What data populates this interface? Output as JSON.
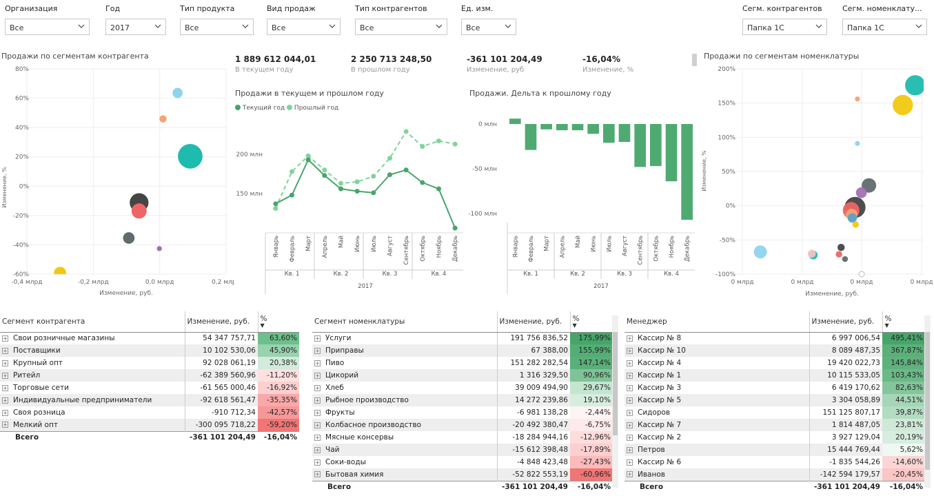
{
  "filters": [
    {
      "label": "Организация",
      "value": "Все"
    },
    {
      "label": "Год",
      "value": "2017"
    },
    {
      "label": "Тип продукта",
      "value": "Все"
    },
    {
      "label": "Вид продаж",
      "value": "Все"
    },
    {
      "label": "Тип контрагентов",
      "value": "Все"
    },
    {
      "label": "Ед. изм.",
      "value": "Все"
    },
    {
      "label": "Сегм. контрагентов",
      "value": "Папка 1С"
    },
    {
      "label": "Сегм. номенклату...",
      "value": "Папка 1С"
    }
  ],
  "kpis": [
    {
      "value": "1 889 612 044,01",
      "label": "В текущем году"
    },
    {
      "value": "2 250 713 248,50",
      "label": "В прошлом году"
    },
    {
      "value": "-361 101 204,49",
      "label": "Изменение, руб"
    },
    {
      "value": "-16,04%",
      "label": "Изменение, %"
    }
  ],
  "scatter_left": {
    "title": "Продажи по сегментам контрагента",
    "ylabel": "Изменение, %",
    "xlabel": "Изменение, руб.",
    "y_ticks": [
      "80%",
      "60%",
      "40%",
      "20%",
      "0%",
      "-20%",
      "-40%",
      "-60%"
    ],
    "x_ticks": [
      "-0,4 млрд",
      "-0,2 млрд",
      "0,0 млрд",
      "0,2 млрд"
    ]
  },
  "line_chart": {
    "title": "Продажи в текущем и прошлом году",
    "legend": [
      "Текущий год",
      "Прошлый год"
    ],
    "y_ticks": [
      "200 млн",
      "150 млн"
    ],
    "months": [
      "Январь",
      "Февраль",
      "Март",
      "Апрель",
      "Май",
      "Июнь",
      "Июль",
      "Август",
      "Сентябрь",
      "Октябрь",
      "Ноябрь",
      "Декабрь"
    ],
    "quarters": [
      "Кв. 1",
      "Кв. 2",
      "Кв. 3",
      "Кв. 4"
    ],
    "year": "2017"
  },
  "bar_chart": {
    "title": "Продажи. Дельта к прошлому году",
    "y_ticks": [
      "0 млн",
      "-50 млн",
      "-100 млн"
    ],
    "months": [
      "Январь",
      "Февраль",
      "Март",
      "Апрель",
      "Май",
      "Июнь",
      "Июль",
      "Август",
      "Сентябрь",
      "Октябрь",
      "Ноябрь",
      "Декабрь"
    ],
    "quarters": [
      "Кв. 1",
      "Кв. 2",
      "Кв. 3",
      "Кв. 4"
    ],
    "year": "2017"
  },
  "scatter_right": {
    "title": "Продажи по сегментам номенклатуры",
    "ylabel": "Изменение, %",
    "xlabel": "Изменение, руб.",
    "y_ticks": [
      "200%",
      "150%",
      "100%",
      "50%",
      "0%",
      "-50%",
      "-100%"
    ],
    "x_ticks": [
      "0 млрд",
      "0 млрд",
      "0 млрд",
      "0 млрд"
    ]
  },
  "chart_data": [
    {
      "type": "scatter",
      "title": "Продажи по сегментам контрагента",
      "xlabel": "Изменение, руб.",
      "ylabel": "Изменение, %",
      "xlim": [
        -0.4,
        0.2
      ],
      "ylim": [
        -60,
        80
      ],
      "points": [
        {
          "x": 0.054,
          "y": 63.6,
          "size": 14,
          "color": "#8fd3ee"
        },
        {
          "x": 0.01,
          "y": 45.9,
          "size": 10,
          "color": "#f5a375"
        },
        {
          "x": 0.092,
          "y": 20.38,
          "size": 34,
          "color": "#1fbbaf"
        },
        {
          "x": -0.062,
          "y": -11.2,
          "size": 26,
          "color": "#454545"
        },
        {
          "x": -0.062,
          "y": -16.92,
          "size": 21,
          "color": "#ef6565"
        },
        {
          "x": -0.093,
          "y": -35.35,
          "size": 16,
          "color": "#5f6b6d"
        },
        {
          "x": -0.001,
          "y": -42.57,
          "size": 7,
          "color": "#a36fb5"
        },
        {
          "x": -0.3,
          "y": -59.2,
          "size": 17,
          "color": "#f2c811"
        }
      ]
    },
    {
      "type": "line",
      "title": "Продажи в текущем и прошлом году",
      "x": [
        "Январь",
        "Февраль",
        "Март",
        "Апрель",
        "Май",
        "Июнь",
        "Июль",
        "Август",
        "Сентябрь",
        "Октябрь",
        "Ноябрь",
        "Декабрь"
      ],
      "ylim": [
        100,
        250
      ],
      "series": [
        {
          "name": "Текущий год",
          "values": [
            137,
            148,
            193,
            173,
            156,
            153,
            151,
            174,
            180,
            164,
            156,
            106
          ],
          "color": "#47a56a",
          "dash": false
        },
        {
          "name": "Прошлый год",
          "values": [
            131,
            178,
            198,
            180,
            163,
            165,
            172,
            195,
            229,
            210,
            217,
            213
          ],
          "color": "#7fd49b",
          "dash": true
        }
      ]
    },
    {
      "type": "bar",
      "title": "Продажи. Дельта к прошлому году",
      "categories": [
        "Январь",
        "Февраль",
        "Март",
        "Апрель",
        "Май",
        "Июнь",
        "Июль",
        "Август",
        "Сентябрь",
        "Октябрь",
        "Ноябрь",
        "Декабрь"
      ],
      "values": [
        6,
        -29,
        -6,
        -7,
        -7,
        -11,
        -21,
        -20,
        -48,
        -47,
        -64,
        -107
      ],
      "ylim": [
        -110,
        10
      ]
    },
    {
      "type": "scatter",
      "title": "Продажи по сегментам номенклатуры",
      "xlabel": "Изменение, руб.",
      "ylabel": "Изменение, %",
      "ylim": [
        -100,
        200
      ],
      "points": [
        {
          "x": 0.192,
          "y": 175.99,
          "size": 28,
          "color": "#1fbbaf"
        },
        {
          "x": 0.151,
          "y": 147.14,
          "size": 28,
          "color": "#f2c811"
        },
        {
          "x": 0.001,
          "y": 155.99,
          "size": 7,
          "color": "#f5a375"
        },
        {
          "x": 0.001,
          "y": 90.96,
          "size": 7,
          "color": "#8fd3ee"
        },
        {
          "x": 0.039,
          "y": 29.67,
          "size": 20,
          "color": "#5f6b6d"
        },
        {
          "x": 0.014,
          "y": 19.1,
          "size": 15,
          "color": "#a36fb5"
        },
        {
          "x": -0.007,
          "y": -2.44,
          "size": 29,
          "color": "#454545"
        },
        {
          "x": -0.02,
          "y": -6.75,
          "size": 23,
          "color": "#ef6565"
        },
        {
          "x": -0.018,
          "y": -12.96,
          "size": 16,
          "color": "#f5a375"
        },
        {
          "x": -0.016,
          "y": -17.89,
          "size": 13,
          "color": "#5aa0c8"
        },
        {
          "x": -0.005,
          "y": -27.43,
          "size": 9,
          "color": "#f2c811"
        },
        {
          "x": -0.053,
          "y": -60.96,
          "size": 10,
          "color": "#454545"
        },
        {
          "x": -0.32,
          "y": -67.5,
          "size": 18,
          "color": "#8fd3ee"
        },
        {
          "x": -0.15,
          "y": -70.0,
          "size": 11,
          "color": "#f0c4c4"
        },
        {
          "x": -0.145,
          "y": -72.0,
          "size": 12,
          "color": "#1fbbaf"
        },
        {
          "x": -0.06,
          "y": -71.0,
          "size": 9,
          "color": "#ef6565"
        },
        {
          "x": -0.04,
          "y": -78.0,
          "size": 8,
          "color": "#5f6b6d"
        }
      ]
    }
  ],
  "table_left": {
    "headers": [
      "Сегмент контрагента",
      "Изменение, руб.",
      "%"
    ],
    "rows": [
      {
        "name": "Свои розничные магазины",
        "value": "54 347 757,71",
        "pct": "63,60%",
        "bg": "#6cc08b"
      },
      {
        "name": "Поставщики",
        "value": "10 102 530,06",
        "pct": "45,90%",
        "bg": "#99d2ae"
      },
      {
        "name": "Крупный опт",
        "value": "92 028 061,19",
        "pct": "20,38%",
        "bg": "#d2ebdb"
      },
      {
        "name": "Ритейл",
        "value": "-62 389 560,96",
        "pct": "-11,20%",
        "bg": "#fde0e0"
      },
      {
        "name": "Торговые сети",
        "value": "-61 565 000,46",
        "pct": "-16,92%",
        "bg": "#fcd0d0"
      },
      {
        "name": "Индивидуальные предприниматели",
        "value": "-92 618 561,47",
        "pct": "-35,35%",
        "bg": "#f8a8a8"
      },
      {
        "name": "Своя розница",
        "value": "-910 712,34",
        "pct": "-42,57%",
        "bg": "#f69898"
      },
      {
        "name": "Мелкий опт",
        "value": "-300 095 718,22",
        "pct": "-59,20%",
        "bg": "#f07575"
      }
    ],
    "total": {
      "name": "Всего",
      "value": "-361 101 204,49",
      "pct": "-16,04%"
    }
  },
  "table_mid": {
    "headers": [
      "Сегмент номенклатуры",
      "Изменение, руб.",
      "%"
    ],
    "rows": [
      {
        "name": "Услуги",
        "value": "191 756 836,52",
        "pct": "175,99%",
        "bg": "#47a56a"
      },
      {
        "name": "Приправы",
        "value": "67 388,00",
        "pct": "155,99%",
        "bg": "#55ad76"
      },
      {
        "name": "Пиво",
        "value": "151 282 282,54",
        "pct": "147,14%",
        "bg": "#5ab07a"
      },
      {
        "name": "Цикорий",
        "value": "1 316 329,50",
        "pct": "90,96%",
        "bg": "#7fc398"
      },
      {
        "name": "Хлеб",
        "value": "39 009 494,90",
        "pct": "29,67%",
        "bg": "#c4e5d0"
      },
      {
        "name": "Рыбное производство",
        "value": "14 272 239,86",
        "pct": "19,10%",
        "bg": "#d6eddf"
      },
      {
        "name": "Фрукты",
        "value": "-6 981 138,28",
        "pct": "-2,44%",
        "bg": "#fff4f4"
      },
      {
        "name": "Колбасное производство",
        "value": "-20 492 380,47",
        "pct": "-6,75%",
        "bg": "#feeaea"
      },
      {
        "name": "Мясные консервы",
        "value": "-18 284 944,16",
        "pct": "-12,96%",
        "bg": "#fddcdc"
      },
      {
        "name": "Чай",
        "value": "-15 612 398,48",
        "pct": "-17,89%",
        "bg": "#fcd0d0"
      },
      {
        "name": "Соки-воды",
        "value": "-4 848 423,48",
        "pct": "-27,43%",
        "bg": "#fabbbb"
      },
      {
        "name": "Бытовая химия",
        "value": "-52 822 553,19",
        "pct": "-60,96%",
        "bg": "#f07575"
      }
    ],
    "total": {
      "name": "Всего",
      "value": "-361 101 204,49",
      "pct": "-16,04%"
    }
  },
  "table_right": {
    "headers": [
      "Менеджер",
      "Изменение, руб.",
      "%"
    ],
    "rows": [
      {
        "name": "Кассир № 8",
        "value": "6 997 006,54",
        "pct": "495,41%",
        "bg": "#47a56a"
      },
      {
        "name": "Кассир № 10",
        "value": "8 089 487,35",
        "pct": "367,87%",
        "bg": "#5caf7b"
      },
      {
        "name": "Кассир № 4",
        "value": "19 420 022,73",
        "pct": "145,84%",
        "bg": "#5fb17d"
      },
      {
        "name": "Кассир № 1",
        "value": "10 115 533,05",
        "pct": "103,43%",
        "bg": "#6bb987"
      },
      {
        "name": "Кассир № 3",
        "value": "6 419 170,62",
        "pct": "82,63%",
        "bg": "#84c59c"
      },
      {
        "name": "Кассир № 5",
        "value": "3 304 058,89",
        "pct": "44,51%",
        "bg": "#a5d6b7"
      },
      {
        "name": "Сидоров",
        "value": "151 125 807,17",
        "pct": "39,87%",
        "bg": "#b3dcc2"
      },
      {
        "name": "Кассир № 7",
        "value": "1 814 487,05",
        "pct": "23,81%",
        "bg": "#cfe9d8"
      },
      {
        "name": "Кассир № 2",
        "value": "3 927 129,04",
        "pct": "20,19%",
        "bg": "#d6eddf"
      },
      {
        "name": "Петров",
        "value": "15 444 769,44",
        "pct": "5,62%",
        "bg": "#eff8f2"
      },
      {
        "name": "Кассир № 6",
        "value": "-1 835 544,26",
        "pct": "-14,60%",
        "bg": "#fcd6d6"
      },
      {
        "name": "Иванов",
        "value": "-142 594 179,57",
        "pct": "-20,45%",
        "bg": "#fbc6c6"
      }
    ],
    "total": {
      "name": "Всего",
      "value": "-361 101 204,49",
      "pct": "-16,04%"
    }
  }
}
